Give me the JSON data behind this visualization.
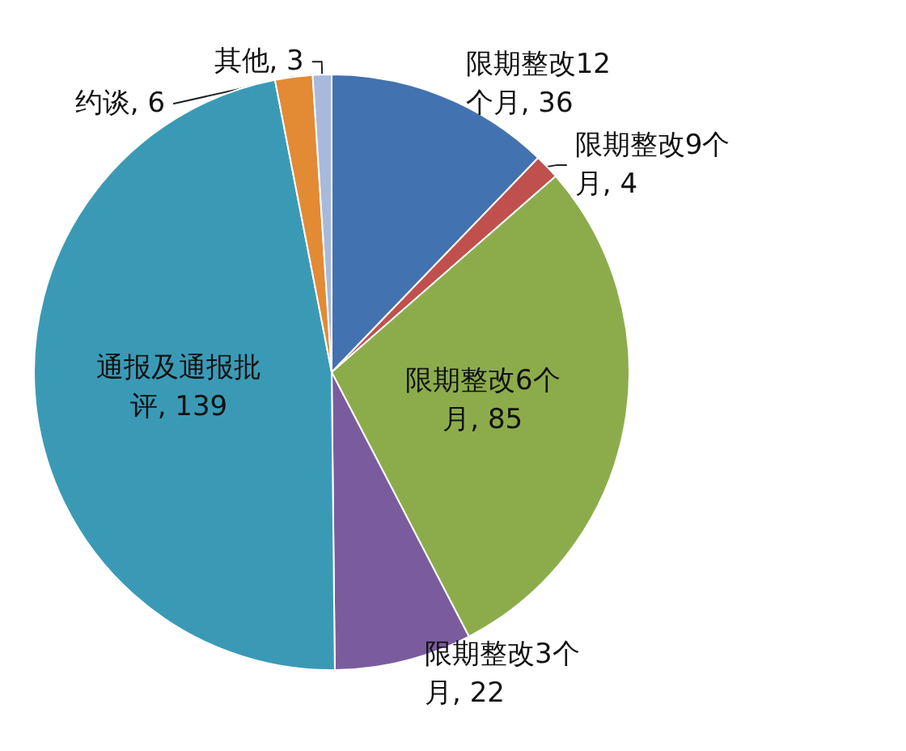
{
  "chart_data": {
    "type": "pie",
    "categories": [
      "限期整改12个月",
      "限期整改9个月",
      "限期整改6个月",
      "限期整改3个月",
      "通报及通报批评",
      "约谈",
      "其他"
    ],
    "values": [
      36,
      4,
      85,
      22,
      139,
      6,
      3
    ],
    "colors": [
      "#4372b0",
      "#c0504d",
      "#8cac4c",
      "#7a5c9e",
      "#3a9ab6",
      "#e38a35",
      "#a8b9dc"
    ],
    "value_labels": [
      ", 36",
      ", 4",
      ", 85",
      ", 22",
      ", 139",
      ", 6",
      ", 3"
    ]
  }
}
